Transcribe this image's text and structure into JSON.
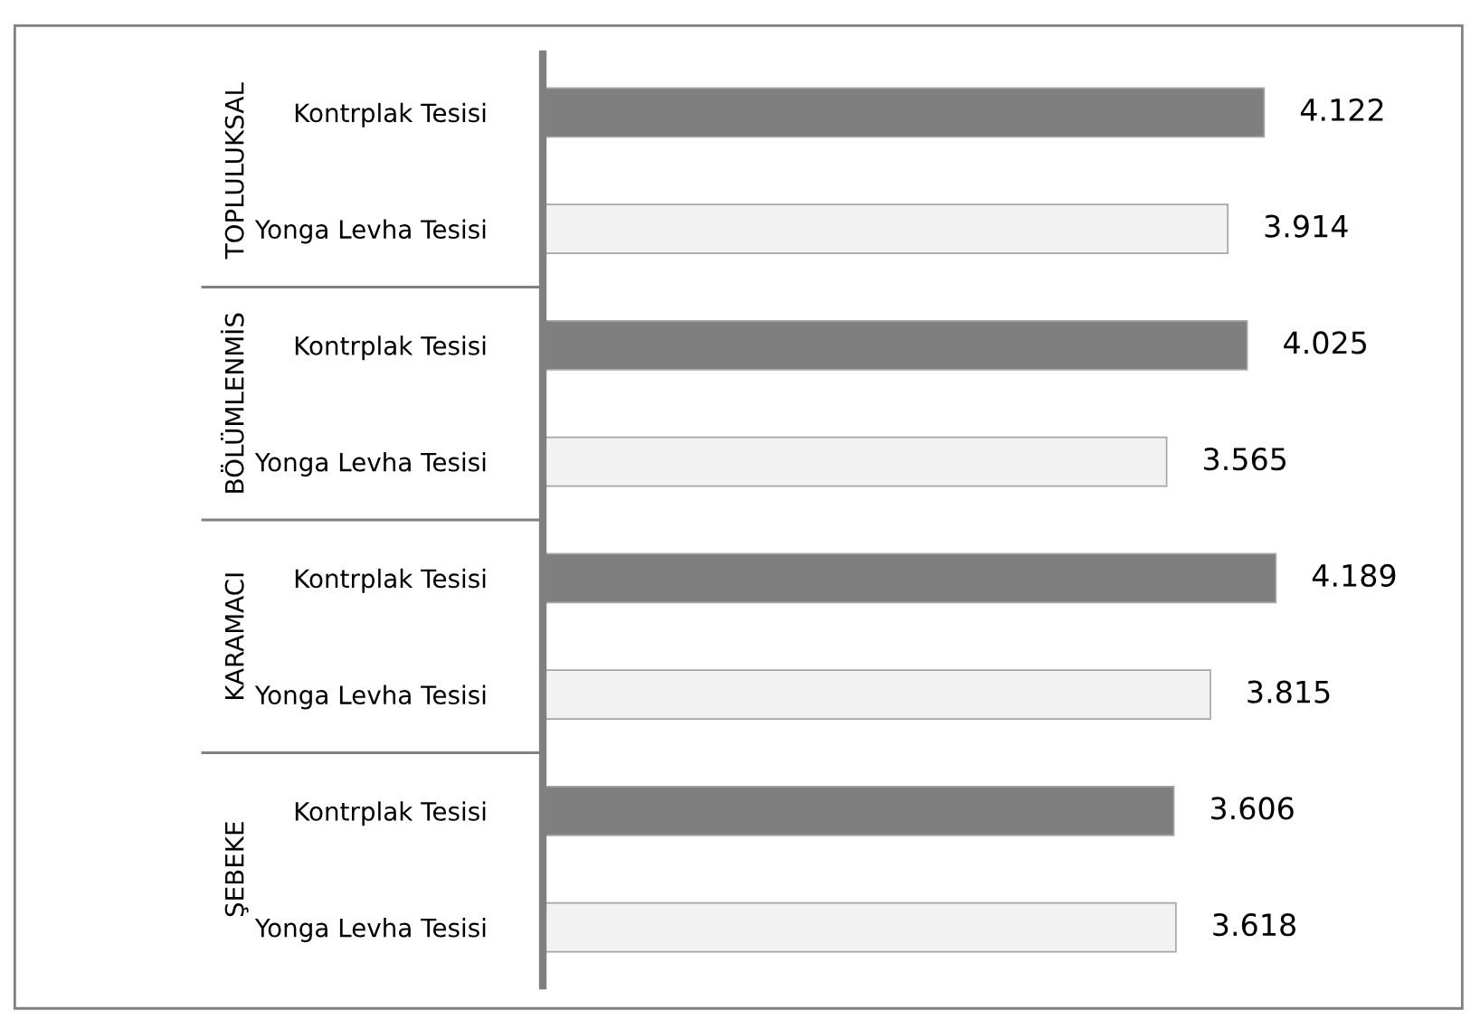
{
  "chart_data": {
    "type": "bar",
    "orientation": "horizontal",
    "categories": [
      "Kontrplak Tesisi",
      "Yonga Levha Tesisi",
      "Kontrplak Tesisi",
      "Yonga Levha Tesisi",
      "Kontrplak Tesisi",
      "Yonga Levha Tesisi",
      "Kontrplak Tesisi",
      "Yonga Levha Tesisi"
    ],
    "values": [
      4.122,
      3.914,
      4.025,
      3.565,
      4.189,
      3.815,
      3.606,
      3.618
    ],
    "colors": [
      "#7f7f7f",
      "#f2f2f2",
      "#7f7f7f",
      "#f2f2f2",
      "#7f7f7f",
      "#f2f2f2",
      "#7f7f7f",
      "#f2f2f2"
    ],
    "annotations": [
      "TOPLULUKSAL",
      "BÖLÜMLENMİS",
      "KARAMACI",
      "ŞEBEKE"
    ],
    "tick_labels": "y",
    "data_labels": true,
    "grid": false
  }
}
